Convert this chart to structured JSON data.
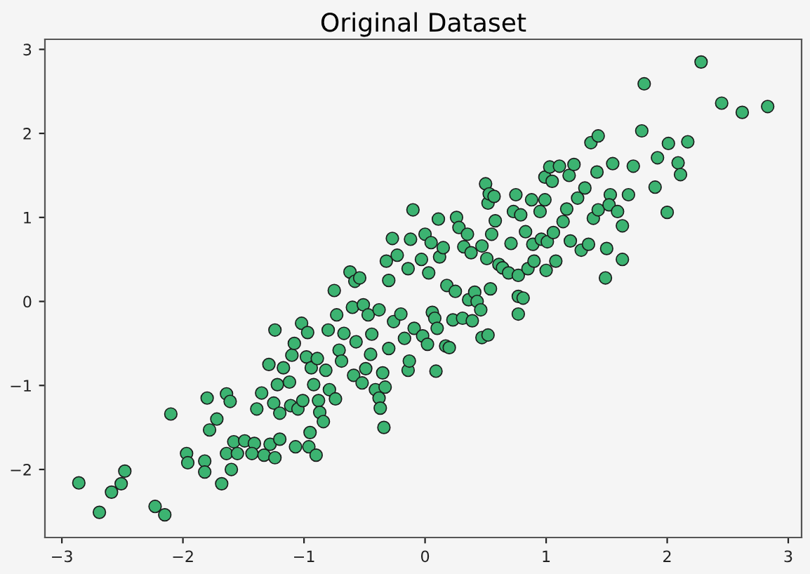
{
  "chart_data": {
    "type": "scatter",
    "title": "Original Dataset",
    "x": [
      -2.86,
      -2.69,
      -2.59,
      -2.51,
      -2.48,
      -2.23,
      -2.15,
      -2.1,
      -1.97,
      -1.96,
      -1.82,
      -1.82,
      -1.8,
      -1.78,
      -1.72,
      -1.68,
      -1.64,
      -1.64,
      -1.61,
      -1.6,
      -1.58,
      -1.55,
      -1.49,
      -1.41,
      -1.43,
      -1.39,
      -1.35,
      -1.33,
      -1.29,
      -1.28,
      -1.25,
      -1.24,
      -1.24,
      -1.22,
      -1.2,
      -1.2,
      -1.17,
      -1.12,
      -1.11,
      -1.1,
      -1.08,
      -1.07,
      -1.05,
      -1.02,
      -1.01,
      -0.98,
      -0.97,
      -0.96,
      -0.95,
      -0.94,
      -0.92,
      -0.9,
      -0.89,
      -0.88,
      -0.87,
      -0.84,
      -0.82,
      -0.8,
      -0.79,
      -0.75,
      -0.74,
      -0.73,
      -0.71,
      -0.69,
      -0.67,
      -0.62,
      -0.6,
      -0.59,
      -0.58,
      -0.57,
      -0.54,
      -0.52,
      -0.51,
      -0.49,
      -0.47,
      -0.45,
      -0.44,
      -0.41,
      -0.38,
      -0.38,
      -0.37,
      -0.35,
      -0.34,
      -0.33,
      -0.32,
      -0.3,
      -0.3,
      -0.27,
      -0.26,
      -0.23,
      -0.2,
      -0.17,
      -0.14,
      -0.14,
      -0.13,
      -0.12,
      -0.1,
      -0.09,
      -0.03,
      -0.02,
      0.0,
      0.02,
      0.03,
      0.05,
      0.06,
      0.08,
      0.09,
      0.1,
      0.11,
      0.12,
      0.15,
      0.17,
      0.18,
      0.2,
      0.23,
      0.25,
      0.26,
      0.28,
      0.31,
      0.32,
      0.35,
      0.36,
      0.38,
      0.39,
      0.41,
      0.43,
      0.46,
      0.47,
      0.47,
      0.5,
      0.51,
      0.52,
      0.52,
      0.53,
      0.54,
      0.55,
      0.57,
      0.58,
      0.61,
      0.64,
      0.69,
      0.71,
      0.73,
      0.75,
      0.77,
      0.77,
      0.77,
      0.79,
      0.81,
      0.83,
      0.85,
      0.88,
      0.89,
      0.9,
      0.95,
      0.96,
      0.99,
      0.99,
      1.0,
      1.01,
      1.03,
      1.05,
      1.06,
      1.08,
      1.11,
      1.14,
      1.17,
      1.19,
      1.2,
      1.23,
      1.26,
      1.29,
      1.32,
      1.35,
      1.37,
      1.39,
      1.42,
      1.43,
      1.43,
      1.49,
      1.5,
      1.53,
      1.55,
      1.52,
      1.59,
      1.63,
      1.63,
      1.68,
      1.72,
      1.79,
      1.81,
      1.9,
      1.92,
      2.0,
      2.01,
      2.09,
      2.11,
      2.17,
      2.28,
      2.45,
      2.62,
      2.83
    ],
    "values": [
      -2.16,
      -2.51,
      -2.27,
      -2.17,
      -2.02,
      -2.44,
      -2.54,
      -1.34,
      -1.81,
      -1.92,
      -1.9,
      -2.03,
      -1.15,
      -1.53,
      -1.4,
      -2.17,
      -1.81,
      -1.1,
      -1.19,
      -2.0,
      -1.67,
      -1.81,
      -1.66,
      -1.69,
      -1.81,
      -1.28,
      -1.09,
      -1.83,
      -0.75,
      -1.7,
      -1.21,
      -0.34,
      -1.86,
      -0.99,
      -1.33,
      -1.64,
      -0.79,
      -0.96,
      -1.24,
      -0.64,
      -0.5,
      -1.73,
      -1.28,
      -0.26,
      -1.18,
      -0.66,
      -0.37,
      -1.73,
      -1.56,
      -0.79,
      -0.99,
      -1.83,
      -0.68,
      -1.18,
      -1.32,
      -1.43,
      -0.82,
      -0.34,
      -1.05,
      0.13,
      -1.16,
      -0.16,
      -0.58,
      -0.71,
      -0.38,
      0.35,
      -0.07,
      -0.88,
      0.24,
      -0.48,
      0.28,
      -0.97,
      -0.04,
      -0.8,
      -0.16,
      -0.63,
      -0.39,
      -1.05,
      -0.1,
      -1.15,
      -1.27,
      -0.85,
      -1.5,
      -1.02,
      0.48,
      0.25,
      -0.56,
      0.75,
      -0.24,
      0.55,
      -0.15,
      -0.44,
      0.39,
      -0.82,
      -0.71,
      0.74,
      1.09,
      -0.32,
      0.5,
      -0.41,
      0.8,
      -0.51,
      0.34,
      0.7,
      -0.13,
      -0.2,
      -0.83,
      -0.32,
      0.98,
      0.53,
      0.64,
      -0.53,
      0.19,
      -0.55,
      -0.22,
      0.12,
      1.0,
      0.88,
      -0.2,
      0.65,
      0.8,
      0.02,
      0.58,
      -0.23,
      0.11,
      0.0,
      -0.1,
      0.66,
      -0.43,
      1.4,
      0.51,
      -0.4,
      1.17,
      1.28,
      0.15,
      0.8,
      1.25,
      0.96,
      0.44,
      0.4,
      0.34,
      0.69,
      1.07,
      1.27,
      0.31,
      0.06,
      -0.15,
      1.03,
      0.04,
      0.83,
      0.39,
      1.21,
      0.68,
      0.48,
      1.07,
      0.74,
      1.48,
      1.21,
      0.37,
      0.71,
      1.6,
      1.43,
      0.82,
      0.48,
      1.61,
      0.95,
      1.1,
      1.5,
      0.72,
      1.63,
      1.23,
      0.61,
      1.35,
      0.68,
      1.89,
      0.99,
      1.54,
      1.97,
      1.09,
      0.28,
      0.63,
      1.27,
      1.64,
      1.15,
      1.07,
      0.5,
      0.9,
      1.27,
      1.61,
      2.03,
      2.59,
      1.36,
      1.71,
      1.06,
      1.88,
      1.65,
      1.51,
      1.9,
      2.85,
      2.36,
      2.25,
      2.32
    ],
    "color": "#3cb371",
    "marker": "circle",
    "grid": false,
    "xlim": [
      -3.14,
      3.11
    ],
    "ylim": [
      -2.81,
      3.12
    ],
    "xticks": [
      {
        "value": -3,
        "label": "−3"
      },
      {
        "value": -2,
        "label": "−2"
      },
      {
        "value": -1,
        "label": "−1"
      },
      0,
      1,
      2,
      3
    ],
    "yticks": [
      {
        "value": -2,
        "label": "−2"
      },
      {
        "value": -1,
        "label": "−1"
      },
      0,
      1,
      2,
      3
    ]
  }
}
